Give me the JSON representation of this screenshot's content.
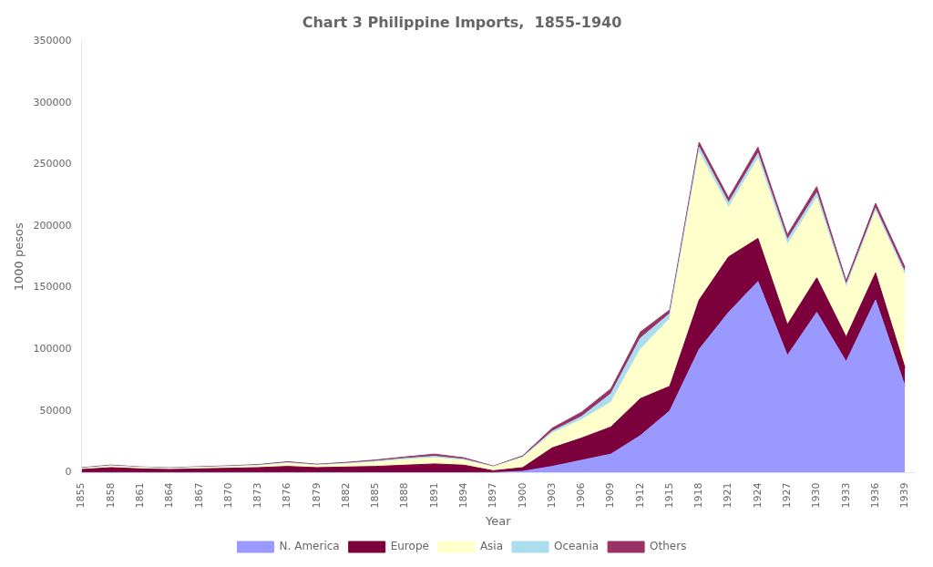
{
  "chart_data": {
    "type": "area",
    "title": "Chart 3 Philippine Imports,  1855-1940",
    "xlabel": "Year",
    "ylabel": "1000 pesos",
    "x": [
      1855,
      1858,
      1861,
      1864,
      1867,
      1870,
      1873,
      1876,
      1879,
      1882,
      1885,
      1888,
      1891,
      1894,
      1897,
      1900,
      1903,
      1906,
      1909,
      1912,
      1915,
      1918,
      1921,
      1924,
      1927,
      1930,
      1933,
      1936,
      1939
    ],
    "series": [
      {
        "name": "N. America",
        "color": "#9999ff",
        "values": [
          0,
          0,
          0,
          0,
          0,
          0,
          0,
          0,
          0,
          0,
          0,
          0,
          0,
          0,
          0,
          1000,
          5000,
          10000,
          15000,
          30000,
          50000,
          100000,
          130000,
          155000,
          95000,
          130000,
          90000,
          140000,
          70000
        ]
      },
      {
        "name": "Europe",
        "color": "#7b003b",
        "values": [
          2500,
          4000,
          3000,
          2500,
          3000,
          3500,
          4000,
          5000,
          4000,
          4500,
          5000,
          6000,
          7000,
          6000,
          1500,
          3000,
          15000,
          18000,
          22000,
          30000,
          20000,
          40000,
          45000,
          35000,
          25000,
          28000,
          20000,
          22000,
          15000
        ]
      },
      {
        "name": "Asia",
        "color": "#ffffcc",
        "values": [
          800,
          1200,
          1000,
          800,
          1000,
          1200,
          1500,
          2500,
          1800,
          2500,
          3500,
          4500,
          5000,
          4000,
          3000,
          8000,
          12000,
          15000,
          20000,
          40000,
          55000,
          120000,
          40000,
          65000,
          65000,
          65000,
          40000,
          50000,
          75000
        ]
      },
      {
        "name": "Oceania",
        "color": "#aaddee",
        "values": [
          300,
          400,
          300,
          300,
          350,
          400,
          500,
          600,
          500,
          600,
          800,
          1000,
          1200,
          800,
          400,
          800,
          1500,
          2500,
          7000,
          9000,
          4000,
          4000,
          4000,
          4000,
          4000,
          4000,
          2500,
          2500,
          2500
        ]
      },
      {
        "name": "Others",
        "color": "#993366",
        "values": [
          400,
          500,
          300,
          300,
          400,
          400,
          500,
          700,
          500,
          700,
          900,
          1200,
          1800,
          1200,
          400,
          800,
          2500,
          3500,
          4000,
          5000,
          3000,
          4000,
          4000,
          5000,
          4000,
          5000,
          3000,
          4000,
          4000
        ]
      }
    ],
    "xlim": [
      1855,
      1940
    ],
    "xticks": [
      1855,
      1858,
      1861,
      1864,
      1867,
      1870,
      1873,
      1876,
      1879,
      1882,
      1885,
      1888,
      1891,
      1894,
      1897,
      1900,
      1903,
      1906,
      1909,
      1912,
      1915,
      1918,
      1921,
      1924,
      1927,
      1930,
      1933,
      1936,
      1939
    ],
    "ylim": [
      0,
      350000
    ],
    "yticks": [
      0,
      50000,
      100000,
      150000,
      200000,
      250000,
      300000,
      350000
    ],
    "stacked": true,
    "grid": false,
    "legend": "bottom"
  }
}
